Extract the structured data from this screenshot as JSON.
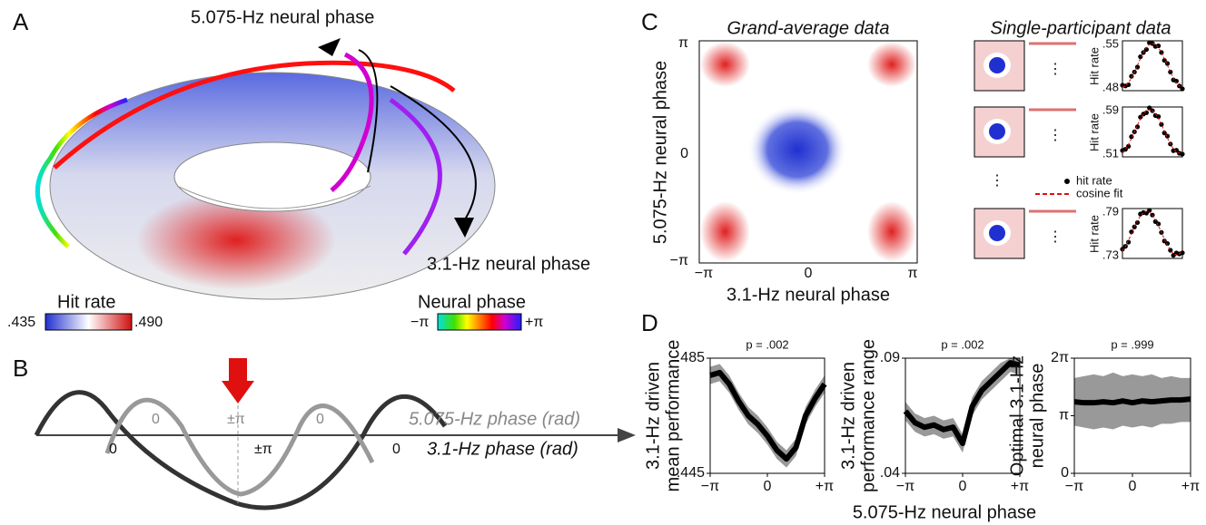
{
  "panels": {
    "a": {
      "label": "A",
      "top_axis": "5.075-Hz neural phase",
      "side_axis": "3.1-Hz neural phase",
      "hit_rate": {
        "title": "Hit rate",
        "low": ".435",
        "high": ".490"
      },
      "phase": {
        "title": "Neural phase",
        "low": "−π",
        "high": "+π"
      }
    },
    "b": {
      "label": "B",
      "upper_ticks": [
        "0",
        "±π",
        "0"
      ],
      "upper_axis": "5.075-Hz phase (rad)",
      "lower_ticks": [
        "0",
        "±π",
        "0"
      ],
      "lower_axis": "3.1-Hz phase (rad)"
    },
    "c": {
      "label": "C",
      "grand_title": "Grand-average data",
      "single_title": "Single-participant data",
      "ylabel": "5.075-Hz neural phase",
      "xlabel": "3.1-Hz neural phase",
      "xticks": [
        "−π",
        "0",
        "π"
      ],
      "yticks": [
        "π",
        "0",
        "−π"
      ],
      "participants": [
        {
          "ylabel": "Hit rate",
          "high": ".55",
          "low": ".48"
        },
        {
          "ylabel": "Hit rate",
          "high": ".59",
          "low": ".51"
        },
        {
          "ylabel": "Hit rate",
          "high": ".79",
          "low": ".73"
        }
      ],
      "legend": [
        "hit rate",
        "cosine fit"
      ]
    },
    "d": {
      "label": "D",
      "xlabel": "5.075-Hz neural phase"
    }
  },
  "chart_data": [
    {
      "type": "line",
      "title": "p = .002",
      "ylabel": [
        "3.1-Hz driven",
        "mean performance"
      ],
      "x": [
        -3.1416,
        -2.618,
        -2.0944,
        -1.5708,
        -1.0472,
        -0.5236,
        0,
        0.5236,
        1.0472,
        1.5708,
        2.0944,
        2.618,
        3.1416
      ],
      "values": [
        0.479,
        0.48,
        0.476,
        0.47,
        0.465,
        0.462,
        0.458,
        0.453,
        0.45,
        0.454,
        0.465,
        0.471,
        0.476
      ],
      "lower": [
        0.476,
        0.477,
        0.473,
        0.467,
        0.462,
        0.459,
        0.455,
        0.45,
        0.447,
        0.451,
        0.462,
        0.468,
        0.473
      ],
      "upper": [
        0.482,
        0.483,
        0.479,
        0.473,
        0.468,
        0.465,
        0.461,
        0.456,
        0.453,
        0.457,
        0.468,
        0.474,
        0.479
      ],
      "color": "#000000",
      "band_color": "#999999",
      "xlim": [
        -3.1416,
        3.1416
      ],
      "xticks": [
        {
          "value": -3.1416,
          "label": "−π"
        },
        0,
        {
          "value": 3.1416,
          "label": "+π"
        }
      ],
      "ylim": [
        0.445,
        0.485
      ],
      "yticks": [
        {
          "value": 0.445,
          "label": ".445"
        },
        {
          "value": 0.485,
          "label": ".485"
        }
      ]
    },
    {
      "type": "line",
      "title": "p = .002",
      "ylabel": [
        "3.1-Hz driven",
        "performance range"
      ],
      "x": [
        -3.1416,
        -2.618,
        -2.0944,
        -1.5708,
        -1.0472,
        -0.5236,
        0,
        0.5236,
        1.0472,
        1.5708,
        2.0944,
        2.618,
        3.1416
      ],
      "values": [
        0.067,
        0.062,
        0.06,
        0.061,
        0.059,
        0.06,
        0.053,
        0.069,
        0.076,
        0.08,
        0.084,
        0.088,
        0.087
      ],
      "lower": [
        0.063,
        0.058,
        0.056,
        0.057,
        0.055,
        0.056,
        0.049,
        0.065,
        0.072,
        0.076,
        0.08,
        0.084,
        0.083
      ],
      "upper": [
        0.071,
        0.066,
        0.064,
        0.065,
        0.063,
        0.064,
        0.057,
        0.073,
        0.08,
        0.084,
        0.088,
        0.09,
        0.09
      ],
      "color": "#000000",
      "band_color": "#999999",
      "xlim": [
        -3.1416,
        3.1416
      ],
      "xticks": [
        {
          "value": -3.1416,
          "label": "−π"
        },
        0,
        {
          "value": 3.1416,
          "label": "+π"
        }
      ],
      "ylim": [
        0.04,
        0.09
      ],
      "yticks": [
        {
          "value": 0.04,
          "label": ".04"
        },
        {
          "value": 0.09,
          "label": ".09"
        }
      ]
    },
    {
      "type": "line",
      "title": "p = .999",
      "ylabel": [
        "Optimal 3.1-Hz",
        "neural phase"
      ],
      "x": [
        -3.1416,
        -2.618,
        -2.0944,
        -1.5708,
        -1.0472,
        -0.5236,
        0,
        0.5236,
        1.0472,
        1.5708,
        2.0944,
        2.618,
        3.1416
      ],
      "values": [
        3.9,
        3.85,
        3.85,
        3.9,
        3.85,
        3.95,
        3.85,
        3.95,
        3.9,
        3.95,
        4.0,
        4.0,
        4.05
      ],
      "lower": [
        2.6,
        2.5,
        2.4,
        2.5,
        2.4,
        2.6,
        2.5,
        2.6,
        2.5,
        2.7,
        2.7,
        2.8,
        2.8
      ],
      "upper": [
        5.2,
        5.3,
        5.4,
        5.3,
        5.5,
        5.3,
        5.4,
        5.3,
        5.4,
        5.2,
        5.3,
        5.2,
        5.2
      ],
      "color": "#000000",
      "band_color": "#999999",
      "xlim": [
        -3.1416,
        3.1416
      ],
      "xticks": [
        {
          "value": -3.1416,
          "label": "−π"
        },
        0,
        {
          "value": 3.1416,
          "label": "+π"
        }
      ],
      "ylim": [
        0,
        6.2832
      ],
      "yticks": [
        0,
        {
          "value": 3.1416,
          "label": "π"
        },
        {
          "value": 6.2832,
          "label": "2π"
        }
      ]
    }
  ]
}
